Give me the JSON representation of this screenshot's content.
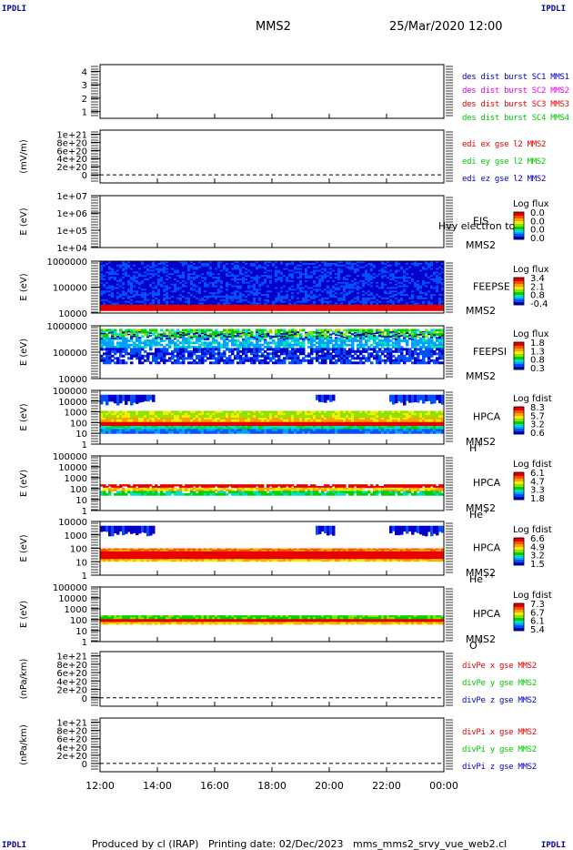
{
  "corners": {
    "tl": "IPDLI",
    "tr": "IPDLI",
    "bl": "IPDLI",
    "br": "IPDLI"
  },
  "header": {
    "spacecraft": "MMS2",
    "datetime": "25/Mar/2020 12:00"
  },
  "footer": {
    "produced": "Produced by cl (IRAP)",
    "printing": "Printing date: 02/Dec/2023",
    "file": "mms_mms2_srvy_vue_web2.cl"
  },
  "colors": {
    "blue": "#0000c8",
    "magenta": "#e600e6",
    "red": "#e60000",
    "green": "#00c800",
    "spec_low": "#0000c8",
    "spec_high": "#e60000"
  },
  "time_axis": {
    "ticks": [
      "12:00",
      "14:00",
      "16:00",
      "18:00",
      "20:00",
      "22:00",
      "00:00"
    ]
  },
  "chart_data": [
    {
      "id": "dist",
      "type": "line",
      "ylim": [
        0.5,
        4.5
      ],
      "ylabel": "",
      "yticks": [
        "4",
        "3",
        "2",
        "1"
      ],
      "ytick_values": [
        4,
        3,
        2,
        1
      ],
      "legend": [
        {
          "text": "des dist burst SC1 MMS1",
          "color": "#0000c8"
        },
        {
          "text": "des dist burst SC2 MMS2",
          "color": "#e600e6"
        },
        {
          "text": "des dist burst SC3 MMS3",
          "color": "#e60000"
        },
        {
          "text": "des dist burst SC4 MMS4",
          "color": "#00c800"
        }
      ]
    },
    {
      "id": "edi",
      "type": "line",
      "ylabel": "(mV/m)",
      "ylim": [
        -2e+20,
        1.1e+21
      ],
      "yticks": [
        "1e+21",
        "8e+20",
        "6e+20",
        "4e+20",
        "2e+20",
        "0"
      ],
      "ytick_values": [
        1e+21,
        8e+20,
        6e+20,
        4e+20,
        2e+20,
        0
      ],
      "zero_line": true,
      "legend": [
        {
          "text": "edi ex gse l2 MMS2",
          "color": "#e60000"
        },
        {
          "text": "edi ey gse l2 MMS2",
          "color": "#00c800"
        },
        {
          "text": "edi ez gse l2 MMS2",
          "color": "#0000c8"
        }
      ]
    },
    {
      "id": "eis",
      "type": "heatmap",
      "ylabel": "E (eV)",
      "yscale": "log",
      "ylim": [
        10000,
        10000000
      ],
      "yticks": [
        "1e+07",
        "1e+06",
        "1e+05",
        "1e+04"
      ],
      "ytick_values": [
        10000000,
        1000000,
        100000,
        10000
      ],
      "instrument": "EIS",
      "sc": "MMS2",
      "overlay": "Hvy electron to",
      "colorbar": {
        "title": "Log flux",
        "values": [
          "0.0",
          "0.0",
          "0.0",
          "0.0"
        ]
      }
    },
    {
      "id": "feepse",
      "type": "heatmap",
      "ylabel": "E (eV)",
      "yscale": "log",
      "ylim": [
        10000,
        1000000
      ],
      "yticks": [
        "1000000",
        "100000",
        "10000"
      ],
      "ytick_values": [
        1000000,
        100000,
        10000
      ],
      "instrument": "FEEPSE",
      "sc": "MMS2",
      "colorbar": {
        "title": "Log flux",
        "values": [
          "3.4",
          "2.1",
          "0.8",
          "-0.4"
        ]
      }
    },
    {
      "id": "feepsi",
      "type": "heatmap",
      "ylabel": "E (eV)",
      "yscale": "log",
      "ylim": [
        10000,
        1000000
      ],
      "yticks": [
        "1000000",
        "100000",
        "10000"
      ],
      "ytick_values": [
        1000000,
        100000,
        10000
      ],
      "instrument": "FEEPSI",
      "sc": "MMS2",
      "colorbar": {
        "title": "Log flux",
        "values": [
          "1.8",
          "1.3",
          "0.8",
          "0.3"
        ]
      }
    },
    {
      "id": "hpca_h",
      "type": "heatmap",
      "ylabel": "E (eV)",
      "yscale": "log",
      "ylim": [
        1,
        100000
      ],
      "yticks": [
        "100000",
        "10000",
        "1000",
        "100",
        "10",
        "1"
      ],
      "ytick_values": [
        100000,
        10000,
        1000,
        100,
        10,
        1
      ],
      "instrument": "HPCA",
      "sc": "MMS2",
      "species": "H",
      "charge": "+",
      "colorbar": {
        "title": "Log fdist",
        "values": [
          "8.3",
          "5.7",
          "3.2",
          "0.6"
        ]
      }
    },
    {
      "id": "hpca_he",
      "type": "heatmap",
      "ylabel": "E (eV)",
      "yscale": "log",
      "ylim": [
        1,
        100000
      ],
      "yticks": [
        "100000",
        "10000",
        "1000",
        "100",
        "10",
        "1"
      ],
      "ytick_values": [
        100000,
        10000,
        1000,
        100,
        10,
        1
      ],
      "instrument": "HPCA",
      "sc": "MMS2",
      "species": "He",
      "charge": "+",
      "colorbar": {
        "title": "Log fdist",
        "values": [
          "6.1",
          "4.7",
          "3.3",
          "1.8"
        ]
      }
    },
    {
      "id": "hpca_he2",
      "type": "heatmap",
      "ylabel": "E (eV)",
      "yscale": "log",
      "ylim": [
        1,
        10000
      ],
      "yticks": [
        "10000",
        "1000",
        "100",
        "10",
        "1"
      ],
      "ytick_values": [
        10000,
        1000,
        100,
        10,
        1
      ],
      "instrument": "HPCA",
      "sc": "MMS2",
      "species": "He",
      "charge": "++",
      "colorbar": {
        "title": "Log fdist",
        "values": [
          "6.6",
          "4.9",
          "3.2",
          "1.5"
        ]
      }
    },
    {
      "id": "hpca_o",
      "type": "heatmap",
      "ylabel": "E (eV)",
      "yscale": "log",
      "ylim": [
        1,
        100000
      ],
      "yticks": [
        "100000",
        "10000",
        "1000",
        "100",
        "10",
        "1"
      ],
      "ytick_values": [
        100000,
        10000,
        1000,
        100,
        10,
        1
      ],
      "instrument": "HPCA",
      "sc": "MMS2",
      "species": "O",
      "charge": "+",
      "colorbar": {
        "title": "Log fdist",
        "values": [
          "7.3",
          "6.7",
          "6.1",
          "5.4"
        ]
      }
    },
    {
      "id": "divpe",
      "type": "line",
      "ylabel": "(nPa/km)",
      "ylim": [
        -2e+20,
        1.1e+21
      ],
      "yticks": [
        "1e+21",
        "8e+20",
        "6e+20",
        "4e+20",
        "2e+20",
        "0"
      ],
      "ytick_values": [
        1e+21,
        8e+20,
        6e+20,
        4e+20,
        2e+20,
        0
      ],
      "zero_line": true,
      "legend": [
        {
          "text": "divPe x gse MMS2",
          "color": "#e60000"
        },
        {
          "text": "divPe y gse MMS2",
          "color": "#00c800"
        },
        {
          "text": "divPe z gse MMS2",
          "color": "#0000c8"
        }
      ]
    },
    {
      "id": "divpi",
      "type": "line",
      "ylabel": "(nPa/km)",
      "ylim": [
        -2e+20,
        1.1e+21
      ],
      "yticks": [
        "1e+21",
        "8e+20",
        "6e+20",
        "4e+20",
        "2e+20",
        "0"
      ],
      "ytick_values": [
        1e+21,
        8e+20,
        6e+20,
        4e+20,
        2e+20,
        0
      ],
      "zero_line": true,
      "legend": [
        {
          "text": "divPi x gse MMS2",
          "color": "#e60000"
        },
        {
          "text": "divPi y gse MMS2",
          "color": "#00c800"
        },
        {
          "text": "divPi z gse MMS2",
          "color": "#0000c8"
        }
      ]
    }
  ]
}
